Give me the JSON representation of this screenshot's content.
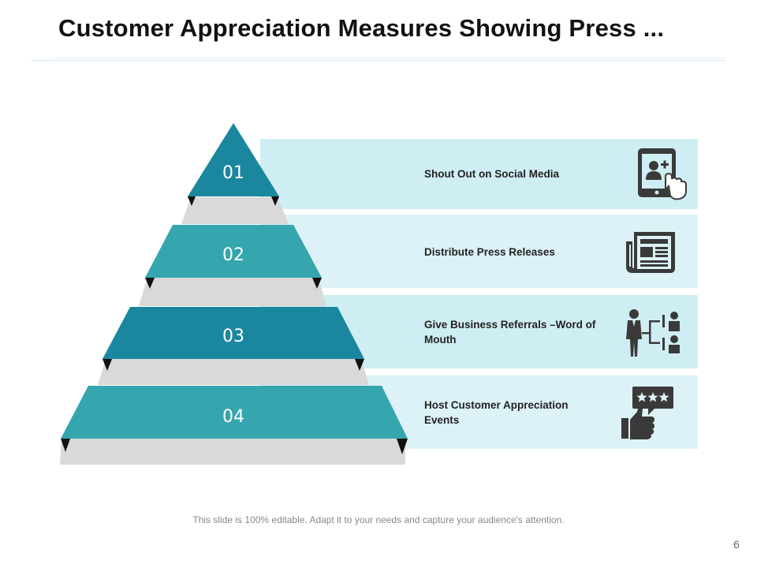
{
  "slide": {
    "title": "Customer Appreciation  Measures Showing Press ...",
    "footer": "This slide is 100% editable. Adapt it to your needs and capture your audience's attention.",
    "page_number": "6"
  },
  "colors": {
    "dark_teal": "#1b879e",
    "mid_teal": "#35a5ae",
    "band_light": "#cfeef4",
    "band_lighter": "#dcf2f6",
    "gray": "#d9d9d9",
    "icon": "#3a3a3a"
  },
  "pyramid": {
    "levels": [
      {
        "number": "01",
        "label": "Shout Out on Social Media",
        "icon": "tablet-touch-icon"
      },
      {
        "number": "02",
        "label": "Distribute Press Releases",
        "icon": "newspaper-icon"
      },
      {
        "number": "03",
        "label": "Give Business Referrals –Word of Mouth",
        "icon": "referral-icon"
      },
      {
        "number": "04",
        "label": "Host Customer Appreciation Events",
        "icon": "thumbs-up-rating-icon"
      }
    ]
  }
}
